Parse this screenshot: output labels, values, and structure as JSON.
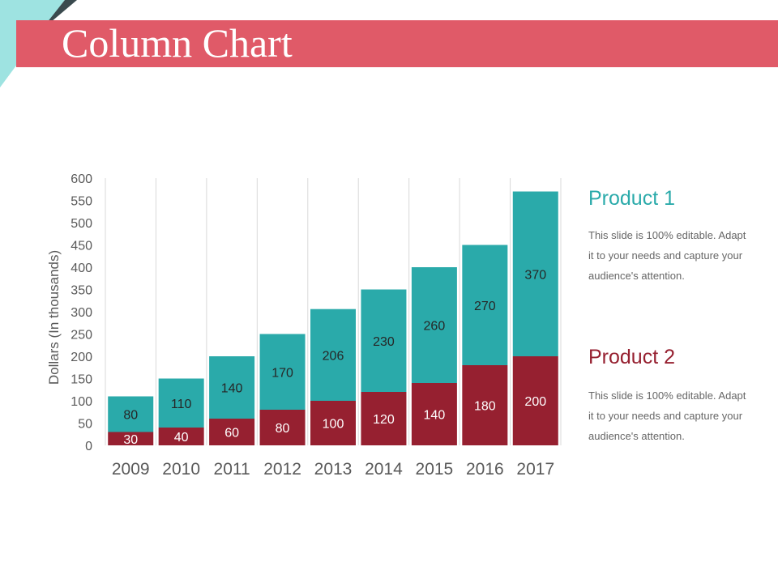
{
  "slide": {
    "title": "Column Chart"
  },
  "colors": {
    "title_band": "#e05a68",
    "corner_light": "#9ee3e1",
    "corner_dark": "#3a4a4e",
    "product1": "#2aaaaa",
    "product2": "#962030",
    "gridline": "#d9d9d9",
    "axis_text": "#595959"
  },
  "legend": {
    "items": [
      {
        "title": "Product 1",
        "text": "This slide is 100% editable. Adapt it to your needs and capture your audience's attention."
      },
      {
        "title": "Product 2",
        "text": "This slide is 100% editable. Adapt it to your needs and capture your audience's attention."
      }
    ]
  },
  "chart_data": {
    "type": "bar",
    "stacked": true,
    "categories": [
      "2009",
      "2010",
      "2011",
      "2012",
      "2013",
      "2014",
      "2015",
      "2016",
      "2017"
    ],
    "series": [
      {
        "name": "Product 2",
        "values": [
          30,
          40,
          60,
          80,
          100,
          120,
          140,
          180,
          200
        ]
      },
      {
        "name": "Product 1",
        "values": [
          80,
          110,
          140,
          170,
          206,
          230,
          260,
          270,
          370
        ]
      }
    ],
    "ylabel": "Dollars (In thousands)",
    "xlabel": "",
    "ylim": [
      0,
      600
    ],
    "yticks": [
      0,
      50,
      100,
      150,
      200,
      250,
      300,
      350,
      400,
      450,
      500,
      550,
      600
    ],
    "grid": "vertical",
    "legend_position": "right"
  }
}
